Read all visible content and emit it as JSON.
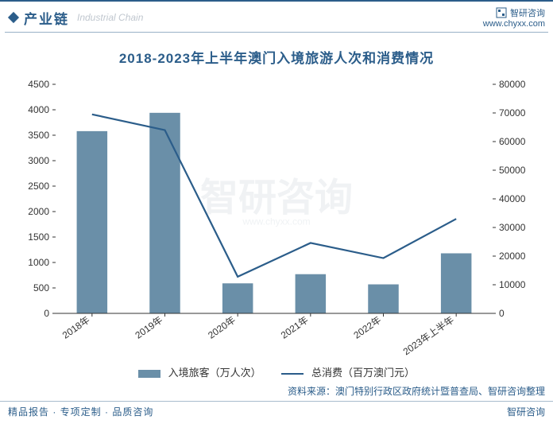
{
  "header": {
    "section_label": "产业链",
    "section_sub": "Industrial Chain",
    "brand_name": "智研咨询",
    "brand_url": "www.chyxx.com"
  },
  "chart": {
    "type": "bar+line",
    "title": "2018-2023年上半年澳门入境旅游人次和消费情况",
    "categories": [
      "2018年",
      "2019年",
      "2020年",
      "2021年",
      "2022年",
      "2023年上半年"
    ],
    "bar_series": {
      "label": "入境旅客（万人次）",
      "values": [
        3580,
        3940,
        590,
        770,
        570,
        1180
      ],
      "color": "#6a8fa8"
    },
    "line_series": {
      "label": "总消费（百万澳门元）",
      "values": [
        69500,
        64000,
        12800,
        24600,
        19300,
        33000
      ],
      "color": "#2b5d8a"
    },
    "y_left": {
      "min": 0,
      "max": 4500,
      "step": 500
    },
    "y_right": {
      "min": 0,
      "max": 80000,
      "step": 10000
    },
    "plot": {
      "background_color": "#ffffff",
      "bar_width_ratio": 0.42,
      "line_width": 2.2,
      "tick_fontsize": 12,
      "title_fontsize": 17,
      "axis_color": "#333333"
    },
    "watermark_text": "智研咨询",
    "watermark_url": "www.chyxx.com"
  },
  "source": "资料来源：澳门特别行政区政府统计暨普查局、智研咨询整理",
  "footer": {
    "left": "精品报告 · 专项定制 · 品质咨询",
    "right": "智研咨询"
  }
}
